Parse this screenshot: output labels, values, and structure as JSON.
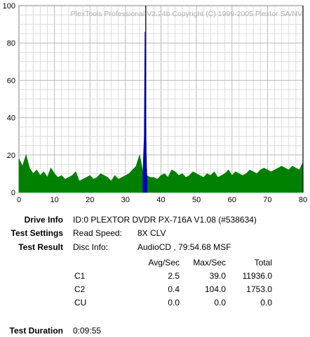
{
  "chart_data": {
    "type": "area",
    "watermark": "PlexTools Professional V2.24b Copyright (C) 1999-2005 Plextor SA/NV",
    "xlim": [
      0,
      80
    ],
    "ylim": [
      0,
      100
    ],
    "x_ticks": [
      0,
      10,
      20,
      30,
      40,
      50,
      60,
      70,
      80
    ],
    "y_ticks": [
      0,
      20,
      40,
      60,
      80,
      100
    ],
    "grid": true,
    "markers_x": [
      35.7,
      80
    ],
    "series": [
      {
        "color": "#008000",
        "x": [
          0,
          1,
          2,
          3,
          4,
          5,
          6,
          7,
          8,
          9,
          10,
          11,
          12,
          13,
          14,
          15,
          16,
          17,
          18,
          19,
          20,
          21,
          22,
          23,
          24,
          25,
          26,
          27,
          28,
          29,
          30,
          31,
          32,
          33,
          34,
          35,
          36,
          37,
          38,
          39,
          40,
          41,
          42,
          43,
          44,
          45,
          46,
          47,
          48,
          49,
          50,
          51,
          52,
          53,
          54,
          55,
          56,
          57,
          58,
          59,
          60,
          61,
          62,
          63,
          64,
          65,
          66,
          67,
          68,
          69,
          70,
          71,
          72,
          73,
          74,
          75,
          76,
          77,
          78,
          79,
          80
        ],
        "values": [
          18,
          14,
          20,
          13,
          10,
          12,
          9,
          11,
          8,
          13,
          10,
          8,
          9,
          7,
          8,
          9,
          11,
          6,
          7,
          8,
          9,
          7,
          8,
          10,
          9,
          8,
          6,
          9,
          7,
          8,
          9,
          10,
          12,
          14,
          20,
          10,
          9,
          8,
          8,
          7,
          9,
          10,
          8,
          12,
          11,
          9,
          10,
          8,
          9,
          11,
          10,
          9,
          8,
          10,
          9,
          11,
          8,
          9,
          10,
          12,
          9,
          11,
          10,
          9,
          10,
          12,
          11,
          10,
          12,
          13,
          12,
          11,
          12,
          13,
          14,
          13,
          12,
          14,
          13,
          12,
          16
        ]
      },
      {
        "color": "#0000cc",
        "x": [
          34.9,
          35.1,
          35.3,
          35.5,
          35.7,
          35.9,
          36.1
        ],
        "values": [
          8,
          20,
          30,
          86,
          37,
          15,
          5
        ]
      }
    ]
  },
  "info": {
    "drive_label": "Drive Info",
    "drive_value": "ID:0 PLEXTOR DVDR  PX-716A  V1.08 (#538634)",
    "settings_label": "Test Settings",
    "read_speed_label": "Read Speed:",
    "read_speed_value": "8X CLV",
    "result_label": "Test Result",
    "disc_info_label": "Disc Info:",
    "disc_info_value": "AudioCD , 79:54.68 MSF",
    "columns": [
      "Avg/Sec",
      "Max/Sec",
      "Total"
    ],
    "rows": [
      {
        "name": "C1",
        "avg": "2.5",
        "max": "39.0",
        "total": "11936.0"
      },
      {
        "name": "C2",
        "avg": "0.4",
        "max": "104.0",
        "total": "1753.0"
      },
      {
        "name": "CU",
        "avg": "0.0",
        "max": "0.0",
        "total": "0.0"
      }
    ],
    "duration_label": "Test Duration",
    "duration_value": "0:09:55"
  }
}
